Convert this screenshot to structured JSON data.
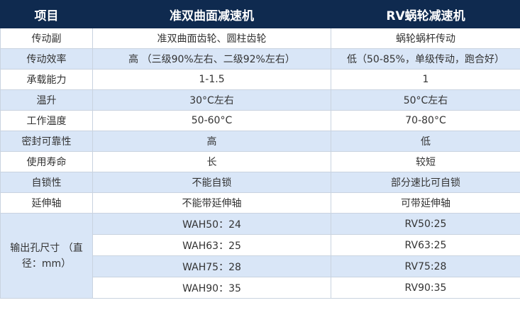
{
  "header": {
    "col1": "项目",
    "col2": "准双曲面减速机",
    "col3": "RV蜗轮减速机"
  },
  "rows": [
    {
      "label": "传动副",
      "a": "准双曲面齿轮、圆柱齿轮",
      "b": "蜗轮蜗杆传动"
    },
    {
      "label": "传动效率",
      "a": "高 （三级90%左右、二级92%左右）",
      "b": "低（50-85%，单级传动，跑合好）"
    },
    {
      "label": "承载能力",
      "a": "1-1.5",
      "b": "1"
    },
    {
      "label": "温升",
      "a": "30°C左右",
      "b": "50°C左右"
    },
    {
      "label": "工作温度",
      "a": "50-60°C",
      "b": "70-80°C"
    },
    {
      "label": "密封可靠性",
      "a": "高",
      "b": "低"
    },
    {
      "label": "使用寿命",
      "a": "长",
      "b": "较短"
    },
    {
      "label": "自锁性",
      "a": "不能自锁",
      "b": "部分速比可自锁"
    },
    {
      "label": "延伸轴",
      "a": "不能带延伸轴",
      "b": "可带延伸轴"
    }
  ],
  "output": {
    "label": "输出孔尺寸 （直径：mm）",
    "items": [
      {
        "a": "WAH50：24",
        "b": "RV50:25"
      },
      {
        "a": "WAH63：25",
        "b": "RV63:25"
      },
      {
        "a": "WAH75：28",
        "b": "RV75:28"
      },
      {
        "a": "WAH90：35",
        "b": "RV90:35"
      }
    ]
  }
}
